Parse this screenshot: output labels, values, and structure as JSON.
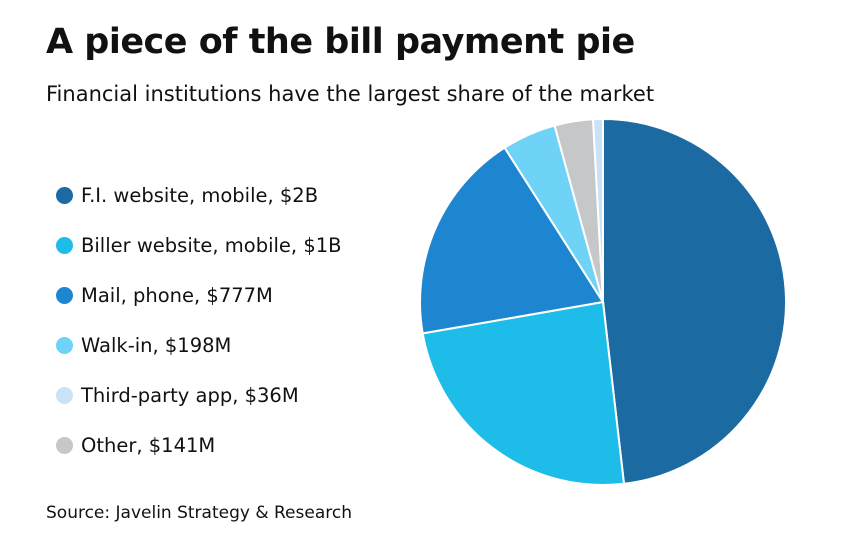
{
  "chart_data": {
    "type": "pie",
    "title": "A piece of the bill payment pie",
    "subtitle": "Financial institutions have the largest share of the market",
    "source": "Source: Javelin Strategy & Research",
    "legend_position": "left",
    "legend": [
      {
        "label": "F.I. website, mobile, $2B",
        "color": "#1b6aa2"
      },
      {
        "label": "Biller website, mobile, $1B",
        "color": "#1ebde9"
      },
      {
        "label": "Mail, phone, $777M",
        "color": "#1e86d1"
      },
      {
        "label": "Walk-in, $198M",
        "color": "#6fd3f8"
      },
      {
        "label": "Third-party app, $36M",
        "color": "#c9e2f8"
      },
      {
        "label": "Other, $141M",
        "color": "#c6c7c9"
      }
    ],
    "slices_clockwise_from_top": [
      {
        "name": "F.I. website, mobile",
        "value": 2000,
        "color": "#1b6aa2"
      },
      {
        "name": "Biller website, mobile",
        "value": 1000,
        "color": "#1ebde9"
      },
      {
        "name": "Mail, phone",
        "value": 777,
        "color": "#1e86d1"
      },
      {
        "name": "Walk-in",
        "value": 198,
        "color": "#6fd3f8"
      },
      {
        "name": "Other",
        "value": 141,
        "color": "#c6c7c9"
      },
      {
        "name": "Third-party app",
        "value": 36,
        "color": "#c9e2f8"
      }
    ],
    "unit": "$M"
  }
}
